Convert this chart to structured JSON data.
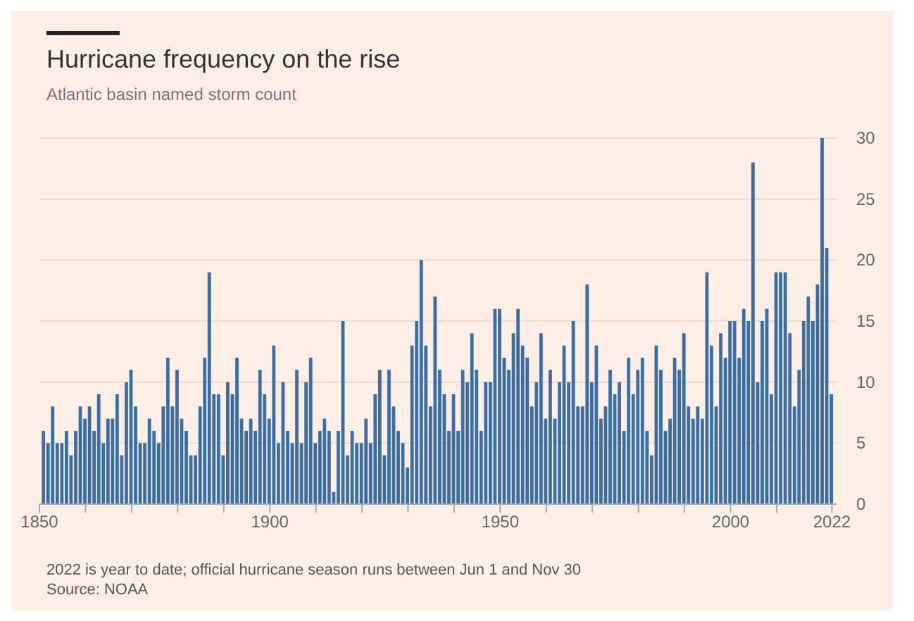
{
  "chart_data": {
    "type": "bar",
    "title": "Hurricane frequency on the rise",
    "subtitle": "Atlantic basin named storm count",
    "x": [
      1851,
      1852,
      1853,
      1854,
      1855,
      1856,
      1857,
      1858,
      1859,
      1860,
      1861,
      1862,
      1863,
      1864,
      1865,
      1866,
      1867,
      1868,
      1869,
      1870,
      1871,
      1872,
      1873,
      1874,
      1875,
      1876,
      1877,
      1878,
      1879,
      1880,
      1881,
      1882,
      1883,
      1884,
      1885,
      1886,
      1887,
      1888,
      1889,
      1890,
      1891,
      1892,
      1893,
      1894,
      1895,
      1896,
      1897,
      1898,
      1899,
      1900,
      1901,
      1902,
      1903,
      1904,
      1905,
      1906,
      1907,
      1908,
      1909,
      1910,
      1911,
      1912,
      1913,
      1914,
      1915,
      1916,
      1917,
      1918,
      1919,
      1920,
      1921,
      1922,
      1923,
      1924,
      1925,
      1926,
      1927,
      1928,
      1929,
      1930,
      1931,
      1932,
      1933,
      1934,
      1935,
      1936,
      1937,
      1938,
      1939,
      1940,
      1941,
      1942,
      1943,
      1944,
      1945,
      1946,
      1947,
      1948,
      1949,
      1950,
      1951,
      1952,
      1953,
      1954,
      1955,
      1956,
      1957,
      1958,
      1959,
      1960,
      1961,
      1962,
      1963,
      1964,
      1965,
      1966,
      1967,
      1968,
      1969,
      1970,
      1971,
      1972,
      1973,
      1974,
      1975,
      1976,
      1977,
      1978,
      1979,
      1980,
      1981,
      1982,
      1983,
      1984,
      1985,
      1986,
      1987,
      1988,
      1989,
      1990,
      1991,
      1992,
      1993,
      1994,
      1995,
      1996,
      1997,
      1998,
      1999,
      2000,
      2001,
      2002,
      2003,
      2004,
      2005,
      2006,
      2007,
      2008,
      2009,
      2010,
      2011,
      2012,
      2013,
      2014,
      2015,
      2016,
      2017,
      2018,
      2019,
      2020,
      2021,
      2022
    ],
    "values": [
      6,
      5,
      8,
      5,
      5,
      6,
      4,
      6,
      8,
      7,
      8,
      6,
      9,
      5,
      7,
      7,
      9,
      4,
      10,
      11,
      8,
      5,
      5,
      7,
      6,
      5,
      8,
      12,
      8,
      11,
      7,
      6,
      4,
      4,
      8,
      12,
      19,
      9,
      9,
      4,
      10,
      9,
      12,
      7,
      6,
      7,
      6,
      11,
      9,
      7,
      13,
      5,
      10,
      6,
      5,
      11,
      5,
      10,
      12,
      5,
      6,
      7,
      6,
      1,
      6,
      15,
      4,
      6,
      5,
      5,
      7,
      5,
      9,
      11,
      4,
      11,
      8,
      6,
      5,
      3,
      13,
      15,
      20,
      13,
      8,
      17,
      11,
      9,
      6,
      9,
      6,
      11,
      10,
      14,
      11,
      6,
      10,
      10,
      16,
      16,
      12,
      11,
      14,
      16,
      13,
      12,
      8,
      10,
      14,
      7,
      11,
      7,
      10,
      13,
      10,
      15,
      8,
      8,
      18,
      10,
      13,
      7,
      8,
      11,
      9,
      10,
      6,
      12,
      9,
      11,
      12,
      6,
      4,
      13,
      11,
      6,
      7,
      12,
      11,
      14,
      8,
      7,
      8,
      7,
      19,
      13,
      8,
      14,
      12,
      15,
      15,
      12,
      16,
      15,
      28,
      10,
      15,
      16,
      9,
      19,
      19,
      19,
      14,
      8,
      11,
      15,
      17,
      15,
      18,
      30,
      21,
      9
    ],
    "color": "#3a6ea5",
    "xlim": [
      1850,
      2023
    ],
    "xticks": [
      1850,
      {
        "value": 1860,
        "label": null
      },
      {
        "value": 1870,
        "label": null
      },
      {
        "value": 1880,
        "label": null
      },
      {
        "value": 1890,
        "label": null
      },
      1900,
      {
        "value": 1910,
        "label": null
      },
      {
        "value": 1920,
        "label": null
      },
      {
        "value": 1930,
        "label": null
      },
      {
        "value": 1940,
        "label": null
      },
      1950,
      {
        "value": 1960,
        "label": null
      },
      {
        "value": 1970,
        "label": null
      },
      {
        "value": 1980,
        "label": null
      },
      {
        "value": 1990,
        "label": null
      },
      2000,
      {
        "value": 2010,
        "label": null
      },
      2022
    ],
    "ylim": [
      0,
      30
    ],
    "yticks": [
      0,
      5,
      10,
      15,
      20,
      25,
      30
    ],
    "grid": "y",
    "annotations": [
      "2022 is year to date; official hurricane season runs between Jun 1 and Nov 30",
      "Source: NOAA"
    ]
  }
}
